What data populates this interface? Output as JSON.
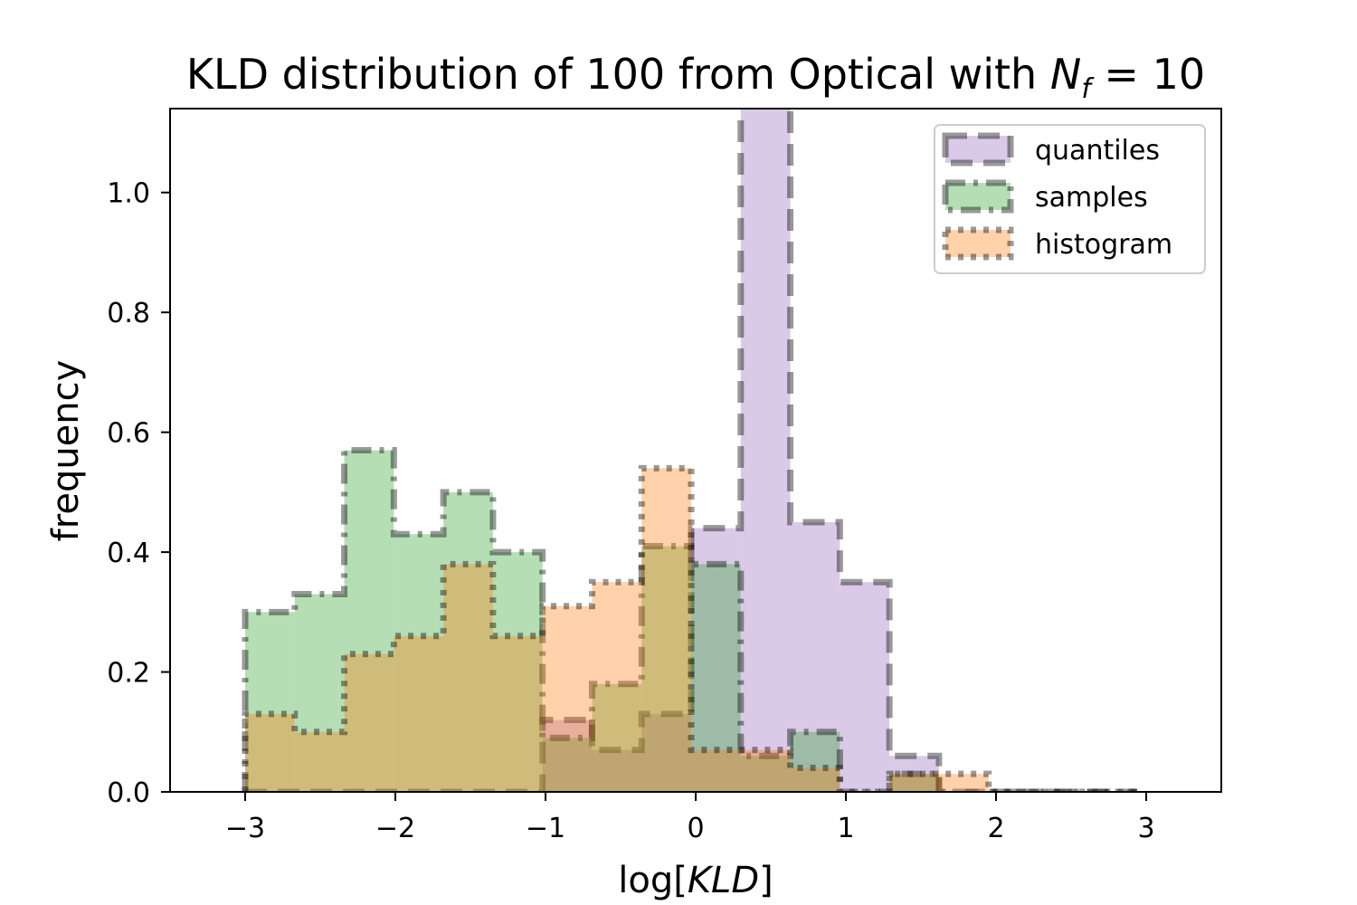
{
  "chart_data": {
    "type": "histogram",
    "title": "KLD distribution of 100 from Optical with N_f = 10",
    "title_parts": {
      "main": "KLD distribution of 100 from Optical with ",
      "var": "N",
      "sub": "f",
      "rest": " = 10"
    },
    "xlabel": "log[KLD]",
    "xlabel_parts": {
      "pre": "log[",
      "var": "KLD",
      "post": "]"
    },
    "ylabel": "frequency",
    "xlim": [
      -3.5,
      3.5
    ],
    "ylim": [
      0,
      1.14
    ],
    "xticks": [
      -3,
      -2,
      -1,
      0,
      1,
      2,
      3
    ],
    "xtick_labels": [
      "−3",
      "−2",
      "−1",
      "0",
      "1",
      "2",
      "3"
    ],
    "yticks": [
      0.0,
      0.2,
      0.4,
      0.6,
      0.8,
      1.0
    ],
    "ytick_labels": [
      "0.0",
      "0.2",
      "0.4",
      "0.6",
      "0.8",
      "1.0"
    ],
    "legend_position": "top-right",
    "bin_edges": [
      -3.0,
      -2.67,
      -2.34,
      -2.01,
      -1.68,
      -1.35,
      -1.02,
      -0.69,
      -0.36,
      -0.03,
      0.3,
      0.63,
      0.96,
      1.29,
      1.62,
      1.95,
      2.28,
      2.61,
      2.94
    ],
    "series": [
      {
        "name": "quantiles",
        "color": "#9467bd",
        "linestyle": "dashed",
        "values": [
          0,
          0,
          0,
          0,
          0,
          0,
          0.12,
          0.07,
          0.13,
          0.44,
          1.15,
          0.45,
          0.35,
          0.06,
          0,
          0,
          0,
          0
        ]
      },
      {
        "name": "samples",
        "color": "#2ca02c",
        "linestyle": "dashdot",
        "values": [
          0.3,
          0.33,
          0.57,
          0.43,
          0.5,
          0.4,
          0.09,
          0.18,
          0.41,
          0.38,
          0.06,
          0.1,
          0,
          0.03,
          0,
          0,
          0,
          0
        ]
      },
      {
        "name": "histogram",
        "color": "#ff7f0e",
        "linestyle": "dotted",
        "values": [
          0.13,
          0.1,
          0.23,
          0.26,
          0.38,
          0.26,
          0.31,
          0.35,
          0.54,
          0.07,
          0.07,
          0.04,
          0,
          0.03,
          0.03,
          0,
          0,
          0
        ]
      }
    ]
  }
}
